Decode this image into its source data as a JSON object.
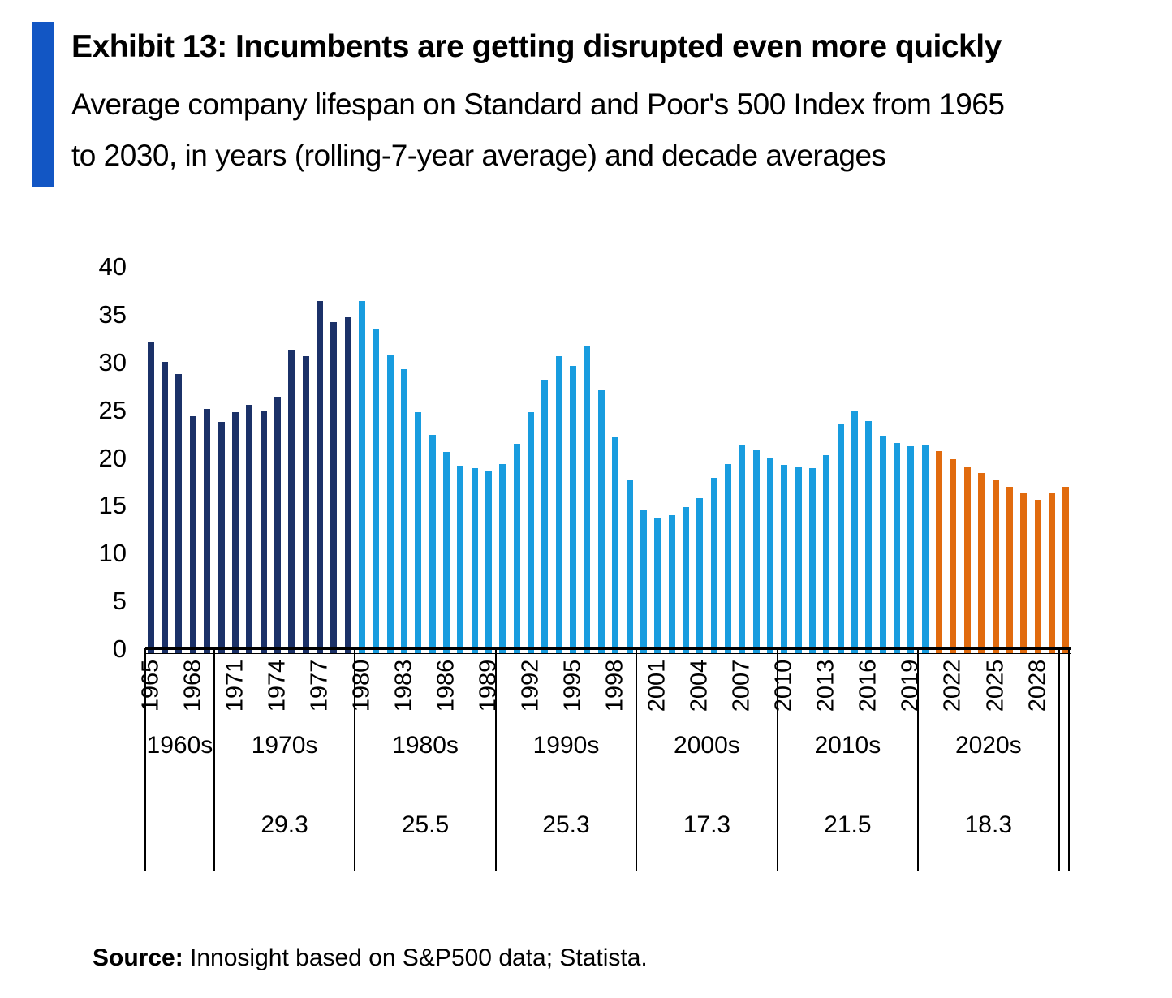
{
  "header": {
    "title": "Exhibit 13: Incumbents are getting disrupted even more quickly",
    "subtitle_line1": "Average company lifespan on Standard and Poor's 500 Index from 1965",
    "subtitle_line2": "to 2030, in years (rolling-7-year average) and decade averages"
  },
  "source": {
    "label": "Source:",
    "text": " Innosight based on S&P500 data; Statista."
  },
  "colors": {
    "accent": "#1256C4",
    "navy": "#1B3168",
    "blue": "#189CDF",
    "orange": "#E16B0E",
    "line": "#000000"
  },
  "chart_data": {
    "type": "bar",
    "title": "Exhibit 13: Incumbents are getting disrupted even more quickly",
    "subtitle": "Average company lifespan on Standard and Poor's 500 Index from 1965 to 2030, in years (rolling-7-year average) and decade averages",
    "xlabel": "",
    "ylabel": "",
    "ylim": [
      0,
      40
    ],
    "grid": false,
    "legend": "none",
    "y_ticks": [
      0,
      5,
      10,
      15,
      20,
      25,
      30,
      35,
      40
    ],
    "x_tick_years": [
      1965,
      1968,
      1971,
      1974,
      1977,
      1980,
      1983,
      1986,
      1989,
      1992,
      1995,
      1998,
      2001,
      2004,
      2007,
      2010,
      2013,
      2016,
      2019,
      2022,
      2025,
      2028
    ],
    "segments": [
      {
        "name": "actual-1965-1979",
        "color_key": "navy",
        "data": [
          [
            1965,
            32.2
          ],
          [
            1966,
            30.1
          ],
          [
            1967,
            28.8
          ],
          [
            1968,
            24.4
          ],
          [
            1969,
            25.1
          ],
          [
            1970,
            23.8
          ],
          [
            1971,
            24.8
          ],
          [
            1972,
            25.6
          ],
          [
            1973,
            24.9
          ],
          [
            1974,
            26.4
          ],
          [
            1975,
            31.3
          ],
          [
            1976,
            30.7
          ],
          [
            1977,
            36.4
          ],
          [
            1978,
            34.2
          ],
          [
            1979,
            34.7
          ]
        ]
      },
      {
        "name": "actual-1980-2020",
        "color_key": "blue",
        "data": [
          [
            1980,
            36.4
          ],
          [
            1981,
            33.5
          ],
          [
            1982,
            30.8
          ],
          [
            1983,
            29.3
          ],
          [
            1984,
            24.8
          ],
          [
            1985,
            22.4
          ],
          [
            1986,
            20.6
          ],
          [
            1987,
            19.2
          ],
          [
            1988,
            18.9
          ],
          [
            1989,
            18.6
          ],
          [
            1990,
            19.4
          ],
          [
            1991,
            21.5
          ],
          [
            1992,
            24.8
          ],
          [
            1993,
            28.2
          ],
          [
            1994,
            30.7
          ],
          [
            1995,
            29.6
          ],
          [
            1996,
            31.7
          ],
          [
            1997,
            27.1
          ],
          [
            1998,
            22.2
          ],
          [
            1999,
            17.7
          ],
          [
            2000,
            14.5
          ],
          [
            2001,
            13.7
          ],
          [
            2002,
            14.0
          ],
          [
            2003,
            14.9
          ],
          [
            2004,
            15.8
          ],
          [
            2005,
            17.9
          ],
          [
            2006,
            19.4
          ],
          [
            2007,
            21.3
          ],
          [
            2008,
            20.9
          ],
          [
            2009,
            20.0
          ],
          [
            2010,
            19.3
          ],
          [
            2011,
            19.1
          ],
          [
            2012,
            18.9
          ],
          [
            2013,
            20.3
          ],
          [
            2014,
            23.5
          ],
          [
            2015,
            24.9
          ],
          [
            2016,
            23.9
          ],
          [
            2017,
            22.3
          ],
          [
            2018,
            21.6
          ],
          [
            2019,
            21.2
          ],
          [
            2020,
            21.4
          ]
        ]
      },
      {
        "name": "forecast-2021-2030",
        "color_key": "orange",
        "data": [
          [
            2021,
            20.7
          ],
          [
            2022,
            19.9
          ],
          [
            2023,
            19.1
          ],
          [
            2024,
            18.4
          ],
          [
            2025,
            17.7
          ],
          [
            2026,
            17.0
          ],
          [
            2027,
            16.4
          ],
          [
            2028,
            15.6
          ],
          [
            2029,
            16.4
          ],
          [
            2030,
            17.0
          ]
        ]
      }
    ],
    "decade_table": [
      {
        "label": "1960s",
        "start": 1965,
        "end": 1969,
        "avg": ""
      },
      {
        "label": "1970s",
        "start": 1970,
        "end": 1979,
        "avg": "29.3"
      },
      {
        "label": "1980s",
        "start": 1980,
        "end": 1989,
        "avg": "25.5"
      },
      {
        "label": "1990s",
        "start": 1990,
        "end": 1999,
        "avg": "25.3"
      },
      {
        "label": "2000s",
        "start": 2000,
        "end": 2009,
        "avg": "17.3"
      },
      {
        "label": "2010s",
        "start": 2010,
        "end": 2019,
        "avg": "21.5"
      },
      {
        "label": "2020s",
        "start": 2020,
        "end": 2029,
        "avg": "18.3"
      }
    ]
  }
}
